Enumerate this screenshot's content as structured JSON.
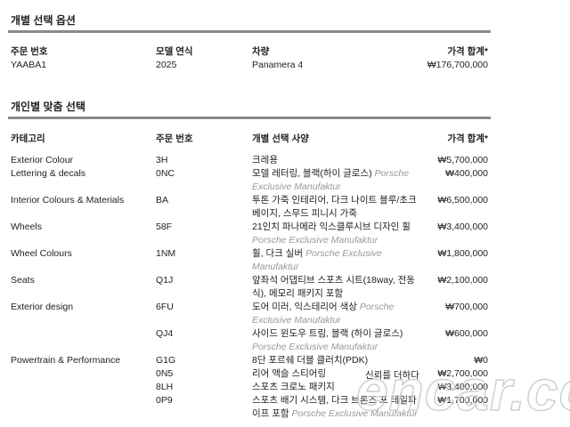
{
  "summary": {
    "title": "개별 선택 옵션",
    "headers": [
      "주문 번호",
      "모델 연식",
      "차량",
      "가격 합계*"
    ],
    "values": [
      "YAABA1",
      "2025",
      "Panamera 4",
      "₩176,700,000"
    ]
  },
  "options": {
    "title": "개인별 맞춤 선택",
    "headers": [
      "카테고리",
      "주문 번호",
      "개별 선택 사양",
      "가격 합계*"
    ],
    "rows": [
      {
        "category": "Exterior Colour",
        "code": "3H",
        "desc": "크레용",
        "tag": "",
        "price": "₩5,700,000"
      },
      {
        "category": "Lettering & decals",
        "code": "0NC",
        "desc": "모델 레터링, 블랙(하이 글로스)",
        "tag": "Porsche Exclusive Manufaktur",
        "price": "₩400,000"
      },
      {
        "category": "Interior Colours & Materials",
        "code": "BA",
        "desc": "투톤 가죽 인테리어, 다크 나이트 블루/초크 베이지, 스무드 피니시 가죽",
        "tag": "",
        "price": "₩6,500,000"
      },
      {
        "category": "Wheels",
        "code": "58F",
        "desc": "21인치 파나메라 익스클루시브 디자인 휠",
        "tag": "Porsche Exclusive Manufaktur",
        "price": "₩3,400,000"
      },
      {
        "category": "Wheel Colours",
        "code": "1NM",
        "desc": "휠, 다크 실버",
        "tag": "Porsche Exclusive Manufaktur",
        "price": "₩1,800,000"
      },
      {
        "category": "Seats",
        "code": "Q1J",
        "desc": "앞좌석 어댑티브 스포츠 시트(18way, 전동식), 메모리 패키지 포함",
        "tag": "",
        "price": "₩2,100,000"
      },
      {
        "category": "Exterior design",
        "code": "6FU",
        "desc": "도어 미러, 익스테리어 색상",
        "tag": "Porsche Exclusive Manufaktur",
        "price": "₩700,000"
      },
      {
        "category": "",
        "code": "QJ4",
        "desc": "사이드 윈도우 트림, 블랙 (하이 글로스)",
        "tag": "Porsche Exclusive Manufaktur",
        "price": "₩600,000"
      },
      {
        "category": "Powertrain & Performance",
        "code": "G1G",
        "desc": "8단 포르쉐 더블 클러치(PDK)",
        "tag": "",
        "price": "₩0"
      },
      {
        "category": "",
        "code": "0N5",
        "desc": "리어 액슬 스티어링",
        "tag": "",
        "price": "₩2,700,000"
      },
      {
        "category": "",
        "code": "8LH",
        "desc": "스포츠 크로노 패키지",
        "tag": "",
        "price": "₩3,400,000"
      },
      {
        "category": "",
        "code": "0P9",
        "desc": "스포츠 배기 시스템, 다크 브론즈 포 테일파이프 포함",
        "tag": "Porsche Exclusive Manufaktur",
        "price": "₩1,700,000"
      }
    ]
  },
  "watermark": {
    "slogan": "신뢰를 더하다",
    "brand": "encar.com"
  }
}
